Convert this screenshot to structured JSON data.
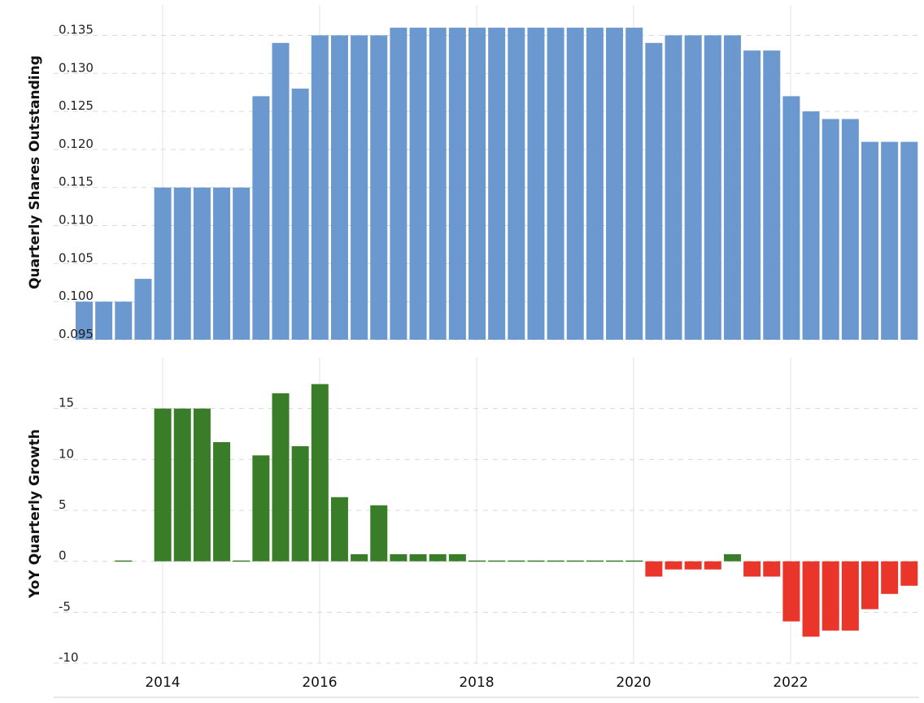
{
  "chart_data": [
    {
      "type": "bar",
      "ylabel": "Quarterly Shares Outstanding",
      "ylim": [
        0.095,
        0.139
      ],
      "yticks": [
        "0.095",
        "0.100",
        "0.105",
        "0.110",
        "0.115",
        "0.120",
        "0.125",
        "0.130",
        "0.135"
      ],
      "grid": "horizontal dashed",
      "color": "#6a98cf",
      "x": [
        "2013-Q1",
        "2013-Q2",
        "2013-Q3",
        "2013-Q4",
        "2014-Q1",
        "2014-Q2",
        "2014-Q3",
        "2014-Q4",
        "2015-Q1",
        "2015-Q2",
        "2015-Q3",
        "2015-Q4",
        "2016-Q1",
        "2016-Q2",
        "2016-Q3",
        "2016-Q4",
        "2017-Q1",
        "2017-Q2",
        "2017-Q3",
        "2017-Q4",
        "2018-Q1",
        "2018-Q2",
        "2018-Q3",
        "2018-Q4",
        "2019-Q1",
        "2019-Q2",
        "2019-Q3",
        "2019-Q4",
        "2020-Q1",
        "2020-Q2",
        "2020-Q3",
        "2020-Q4",
        "2021-Q1",
        "2021-Q2",
        "2021-Q3",
        "2021-Q4",
        "2022-Q1",
        "2022-Q2",
        "2022-Q3",
        "2022-Q4",
        "2023-Q1",
        "2023-Q2",
        "2023-Q3"
      ],
      "values": [
        0.1,
        0.1,
        0.1,
        0.103,
        0.115,
        0.115,
        0.115,
        0.115,
        0.115,
        0.127,
        0.134,
        0.128,
        0.135,
        0.135,
        0.135,
        0.135,
        0.136,
        0.136,
        0.136,
        0.136,
        0.136,
        0.136,
        0.136,
        0.136,
        0.136,
        0.136,
        0.136,
        0.136,
        0.136,
        0.134,
        0.135,
        0.135,
        0.135,
        0.135,
        0.133,
        0.133,
        0.127,
        0.125,
        0.124,
        0.124,
        0.121,
        0.121,
        0.121
      ]
    },
    {
      "type": "bar",
      "ylabel": "YoY Quarterly Growth",
      "ylim": [
        -10,
        20
      ],
      "yticks": [
        "-10",
        "-5",
        "0",
        "5",
        "10",
        "15"
      ],
      "grid": "horizontal dashed",
      "positive_color": "#3a7d29",
      "negative_color": "#e9352a",
      "x_tick_labels": [
        "2014",
        "2016",
        "2018",
        "2020",
        "2022"
      ],
      "x": [
        "2013-Q1",
        "2013-Q2",
        "2013-Q3",
        "2013-Q4",
        "2014-Q1",
        "2014-Q2",
        "2014-Q3",
        "2014-Q4",
        "2015-Q1",
        "2015-Q2",
        "2015-Q3",
        "2015-Q4",
        "2016-Q1",
        "2016-Q2",
        "2016-Q3",
        "2016-Q4",
        "2017-Q1",
        "2017-Q2",
        "2017-Q3",
        "2017-Q4",
        "2018-Q1",
        "2018-Q2",
        "2018-Q3",
        "2018-Q4",
        "2019-Q1",
        "2019-Q2",
        "2019-Q3",
        "2019-Q4",
        "2020-Q1",
        "2020-Q2",
        "2020-Q3",
        "2020-Q4",
        "2021-Q1",
        "2021-Q2",
        "2021-Q3",
        "2021-Q4",
        "2022-Q1",
        "2022-Q2",
        "2022-Q3",
        "2022-Q4",
        "2023-Q1",
        "2023-Q2",
        "2023-Q3"
      ],
      "values": [
        null,
        null,
        0,
        null,
        15.0,
        15.0,
        15.0,
        11.7,
        0,
        10.4,
        16.5,
        11.3,
        17.4,
        6.3,
        0.7,
        5.5,
        0.7,
        0.7,
        0.7,
        0.7,
        0,
        0,
        0,
        0,
        0,
        0,
        0,
        0,
        0,
        -1.5,
        -0.8,
        -0.8,
        -0.8,
        0.7,
        -1.5,
        -1.5,
        -5.9,
        -7.4,
        -6.8,
        -6.8,
        -4.7,
        -3.2,
        -2.4
      ]
    }
  ]
}
